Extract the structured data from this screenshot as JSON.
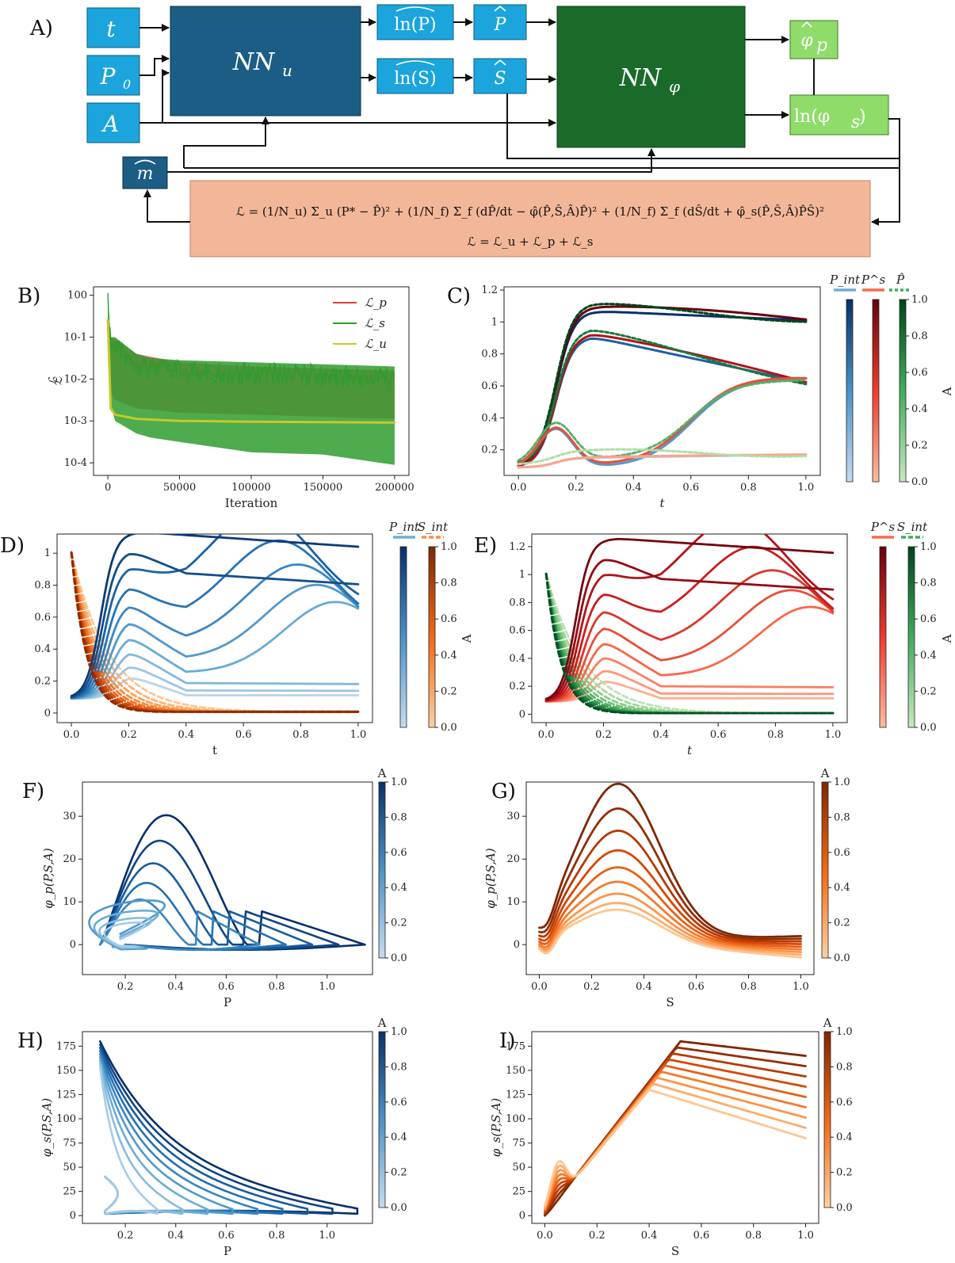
{
  "panel_labels": [
    "A)",
    "B)",
    "C)",
    "D)",
    "E)",
    "F)",
    "G)",
    "H)",
    "I)"
  ],
  "diagram": {
    "inputs": [
      "t",
      "P0",
      "A"
    ],
    "input_labels": {
      "t": "t",
      "P0": "P",
      "P0_sub": "0",
      "A": "A"
    },
    "nn_u": {
      "label": "NN",
      "sub": "u"
    },
    "nn_phi": {
      "label": "NN",
      "sub": "φ"
    },
    "log_p": "ln(P)",
    "log_s": "ln(S)",
    "p_hat": "P",
    "s_hat": "S",
    "phi_p": {
      "label": "φ",
      "sub": "p"
    },
    "phi_s": {
      "label": "ln(φ",
      "sub": "s",
      "tail": ")"
    },
    "m_hat": "m",
    "loss_line1": "ℒ = (1/N_u) Σ_u (P* − P̂)² + (1/N_f) Σ_f (dP̂/dt − φ̂(P̂,Ŝ,Â)P̂)² + (1/N_f) Σ_f (dŜ/dt + φ̂_s(P̂,Ŝ,Â)P̂Ŝ)²",
    "loss_line2": "ℒ = ℒ_u + ℒ_p + ℒ_s",
    "colors": {
      "light_blue": "#1ba5dc",
      "dark_blue": "#1b5d85",
      "dark_green": "#1a6b2a",
      "light_green": "#8fdc6a",
      "salmon": "#f2b799"
    }
  },
  "chart_data": [
    {
      "panel": "B",
      "type": "line",
      "xlabel": "Iteration",
      "ylabel": "ℒ",
      "yscale": "log",
      "xlim": [
        -10000,
        210000
      ],
      "ylim_log10": [
        -4.3,
        0.2
      ],
      "xticks": [
        0,
        50000,
        100000,
        150000,
        200000
      ],
      "ytick_labels": [
        "10^-4",
        "10^-3",
        "10^-2",
        "10^-1",
        "10^0"
      ],
      "legend": "top-right",
      "series": [
        {
          "name": "ℒ_p",
          "color": "#e83a3a",
          "x": [
            0,
            2000,
            5000,
            20000,
            50000,
            100000,
            150000,
            200000
          ],
          "upper": [
            -0.6,
            -1.0,
            -1.05,
            -1.4,
            -1.6,
            -1.7,
            -1.75,
            -1.8
          ],
          "lower": [
            -1.5,
            -2.3,
            -2.5,
            -2.7,
            -2.8,
            -2.85,
            -2.9,
            -2.95
          ]
        },
        {
          "name": "ℒ_s",
          "color": "#2f9c2f",
          "x": [
            0,
            2000,
            5000,
            20000,
            30000,
            50000,
            100000,
            150000,
            200000
          ],
          "upper": [
            0.05,
            -1.0,
            -1.0,
            -1.4,
            -1.5,
            -1.55,
            -1.6,
            -1.65,
            -1.7
          ],
          "lower": [
            -1.5,
            -2.6,
            -3.0,
            -3.3,
            -3.4,
            -3.5,
            -3.75,
            -3.8,
            -4.05
          ]
        },
        {
          "name": "ℒ_u",
          "color": "#c8c828",
          "x": [
            0,
            2000,
            5000,
            20000,
            50000,
            100000,
            150000,
            200000
          ],
          "y": [
            -0.6,
            -2.7,
            -2.85,
            -2.95,
            -3.0,
            -3.02,
            -3.03,
            -3.04
          ]
        }
      ]
    },
    {
      "panel": "C",
      "type": "line",
      "xlabel": "t",
      "xlim": [
        -0.05,
        1.05
      ],
      "ylim": [
        0.04,
        1.22
      ],
      "xticks": [
        0.0,
        0.2,
        0.4,
        0.6,
        0.8,
        1.0
      ],
      "yticks": [
        0.2,
        0.4,
        0.6,
        0.8,
        1.0,
        1.2
      ],
      "colorbar_label": "A",
      "colorbar_ticks": [
        0.0,
        0.2,
        0.4,
        0.6,
        0.8,
        1.0
      ],
      "legend_titles": [
        "P_int",
        "P^s",
        "P̂"
      ],
      "A_values": [
        0.1,
        0.5,
        0.8,
        1.0
      ],
      "series": [
        {
          "A": 1.0,
          "peak": 1.07,
          "t_peak": 0.25,
          "end": 1.01,
          "min_t": null
        },
        {
          "A": 0.75,
          "peak": 0.91,
          "t_peak": 0.25,
          "end": 0.62,
          "min_t": null
        },
        {
          "A": 0.45,
          "peak": 0.33,
          "t_peak": 0.13,
          "end": 0.61,
          "min_t": 0.3
        },
        {
          "A": 0.1,
          "peak": 0.15,
          "t_peak": 0.2,
          "end": 0.17,
          "min_t": null
        }
      ]
    },
    {
      "panel": "D",
      "type": "line",
      "xlabel": "t",
      "xlim": [
        -0.05,
        1.05
      ],
      "ylim": [
        -0.06,
        1.12
      ],
      "xticks": [
        0.0,
        0.2,
        0.4,
        0.6,
        0.8,
        1.0
      ],
      "yticks": [
        0.0,
        0.2,
        0.4,
        0.6,
        0.8,
        1.0
      ],
      "colorbar_label": "A",
      "colorbar_ticks": [
        0.0,
        0.2,
        0.4,
        0.6,
        0.8,
        1.0
      ],
      "legend_titles": [
        "P_int",
        "S_int"
      ],
      "A_values": [
        0.05,
        0.15,
        0.25,
        0.35,
        0.45,
        0.55,
        0.65,
        0.75,
        0.85,
        0.95
      ]
    },
    {
      "panel": "E",
      "type": "line",
      "xlabel": "t",
      "xlim": [
        -0.05,
        1.05
      ],
      "ylim": [
        -0.06,
        1.29
      ],
      "xticks": [
        0.0,
        0.2,
        0.4,
        0.6,
        0.8,
        1.0
      ],
      "yticks": [
        0.0,
        0.2,
        0.4,
        0.6,
        0.8,
        1.0,
        1.2
      ],
      "colorbar_label": "A",
      "colorbar_ticks": [
        0.0,
        0.2,
        0.4,
        0.6,
        0.8,
        1.0
      ],
      "legend_titles": [
        "P^s",
        "S_int"
      ],
      "A_values": [
        0.05,
        0.15,
        0.25,
        0.35,
        0.45,
        0.55,
        0.65,
        0.75,
        0.85,
        0.95
      ]
    },
    {
      "panel": "F",
      "type": "line",
      "xlabel": "P",
      "ylabel": "φ_p(P,S,A)",
      "xlim": [
        0.03,
        1.18
      ],
      "ylim": [
        -7,
        38
      ],
      "xticks": [
        0.2,
        0.4,
        0.6,
        0.8,
        1.0
      ],
      "yticks": [
        0,
        10,
        20,
        30
      ],
      "colorbar_label": "A",
      "colorbar_ticks": [
        0.0,
        0.2,
        0.4,
        0.6,
        0.8,
        1.0
      ]
    },
    {
      "panel": "G",
      "type": "line",
      "xlabel": "S",
      "ylabel": "φ_p(P,S,A)",
      "xlim": [
        -0.05,
        1.05
      ],
      "ylim": [
        -7,
        38
      ],
      "xticks": [
        0.0,
        0.2,
        0.4,
        0.6,
        0.8,
        1.0
      ],
      "yticks": [
        0,
        10,
        20,
        30
      ],
      "colorbar_label": "A",
      "colorbar_ticks": [
        0.0,
        0.2,
        0.4,
        0.6,
        0.8,
        1.0
      ]
    },
    {
      "panel": "H",
      "type": "line",
      "xlabel": "P",
      "ylabel": "φ_s(P,S,A)",
      "xlim": [
        0.03,
        1.18
      ],
      "ylim": [
        -8,
        190
      ],
      "xticks": [
        0.2,
        0.4,
        0.6,
        0.8,
        1.0
      ],
      "yticks": [
        0,
        25,
        50,
        75,
        100,
        125,
        150,
        175
      ],
      "colorbar_label": "A",
      "colorbar_ticks": [
        0.0,
        0.2,
        0.4,
        0.6,
        0.8,
        1.0
      ]
    },
    {
      "panel": "I",
      "type": "line",
      "xlabel": "S",
      "ylabel": "φ_s(P,S,A)",
      "xlim": [
        -0.05,
        1.05
      ],
      "ylim": [
        -8,
        190
      ],
      "xticks": [
        0.0,
        0.2,
        0.4,
        0.6,
        0.8,
        1.0
      ],
      "yticks": [
        0,
        25,
        50,
        75,
        100,
        125,
        150,
        175
      ],
      "colorbar_label": "A",
      "colorbar_ticks": [
        0.0,
        0.2,
        0.4,
        0.6,
        0.8,
        1.0
      ]
    }
  ]
}
